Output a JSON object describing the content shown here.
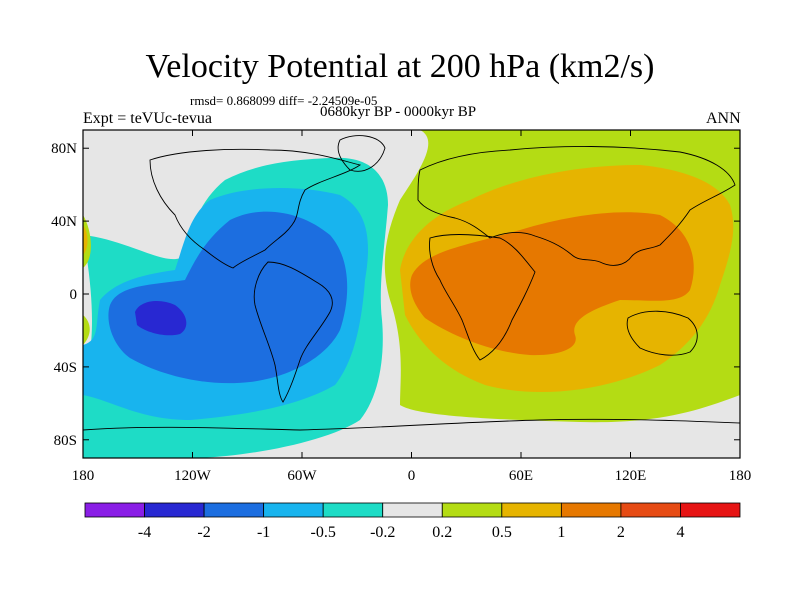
{
  "chart_data": {
    "type": "contour-map",
    "title": "Velocity Potential at 200 hPa (km2/s)",
    "subtitle_stats": "rmsd= 0.868099 diff= -2.24509e-05",
    "experiment": "Expt = teVUc-tevua",
    "period": "0680kyr BP - 0000kyr BP",
    "season": "ANN",
    "lon_range": [
      -180,
      180
    ],
    "lat_range": [
      -90,
      90
    ],
    "x_ticks": [
      {
        "value": -180,
        "label": "180"
      },
      {
        "value": -120,
        "label": "120W"
      },
      {
        "value": -60,
        "label": "60W"
      },
      {
        "value": 0,
        "label": "0"
      },
      {
        "value": 60,
        "label": "60E"
      },
      {
        "value": 120,
        "label": "120E"
      },
      {
        "value": 180,
        "label": "180"
      }
    ],
    "y_ticks": [
      {
        "value": 80,
        "label": "80N"
      },
      {
        "value": 40,
        "label": "40N"
      },
      {
        "value": 0,
        "label": "0"
      },
      {
        "value": -40,
        "label": "40S"
      },
      {
        "value": -80,
        "label": "80S"
      }
    ],
    "levels": [
      -4,
      -2,
      -1,
      -0.5,
      -0.2,
      0.2,
      0.5,
      1,
      2,
      4
    ],
    "level_labels": [
      "-4",
      "-2",
      "-1",
      "-0.5",
      "-0.2",
      "0.2",
      "0.5",
      "1",
      "2",
      "4"
    ],
    "colors": [
      "#8a1ee6",
      "#2828d2",
      "#1c6ee0",
      "#18b4ee",
      "#1edcc6",
      "#e6e6e6",
      "#b4dc14",
      "#e6b400",
      "#e67800",
      "#e64b14",
      "#e61414"
    ],
    "contour_regions": [
      {
        "level_index": 5,
        "label": "-0.2 to 0.2",
        "desc": "near-zero background band (Atlantic, Southern Ocean, high north)"
      },
      {
        "level_index": 4,
        "label": "-0.5 to -0.2",
        "desc": "outer negative region over East Pacific / Americas"
      },
      {
        "level_index": 3,
        "label": "-1 to -0.5",
        "desc": "negative region over Pacific and Americas"
      },
      {
        "level_index": 2,
        "label": "-2 to -1",
        "desc": "negative core over South America / East Pacific"
      },
      {
        "level_index": 1,
        "label": "-4 to -2",
        "desc": "minimum near 145W, 10S"
      },
      {
        "level_index": 6,
        "label": "0.2 to 0.5",
        "desc": "positive region over Eurasia / Indian Ocean"
      },
      {
        "level_index": 7,
        "label": "0.5 to 1",
        "desc": "positive region over Africa / Asia / Indian Ocean"
      },
      {
        "level_index": 8,
        "label": "1 to 2",
        "desc": "maximum over Indian Ocean / South Asia"
      }
    ]
  }
}
